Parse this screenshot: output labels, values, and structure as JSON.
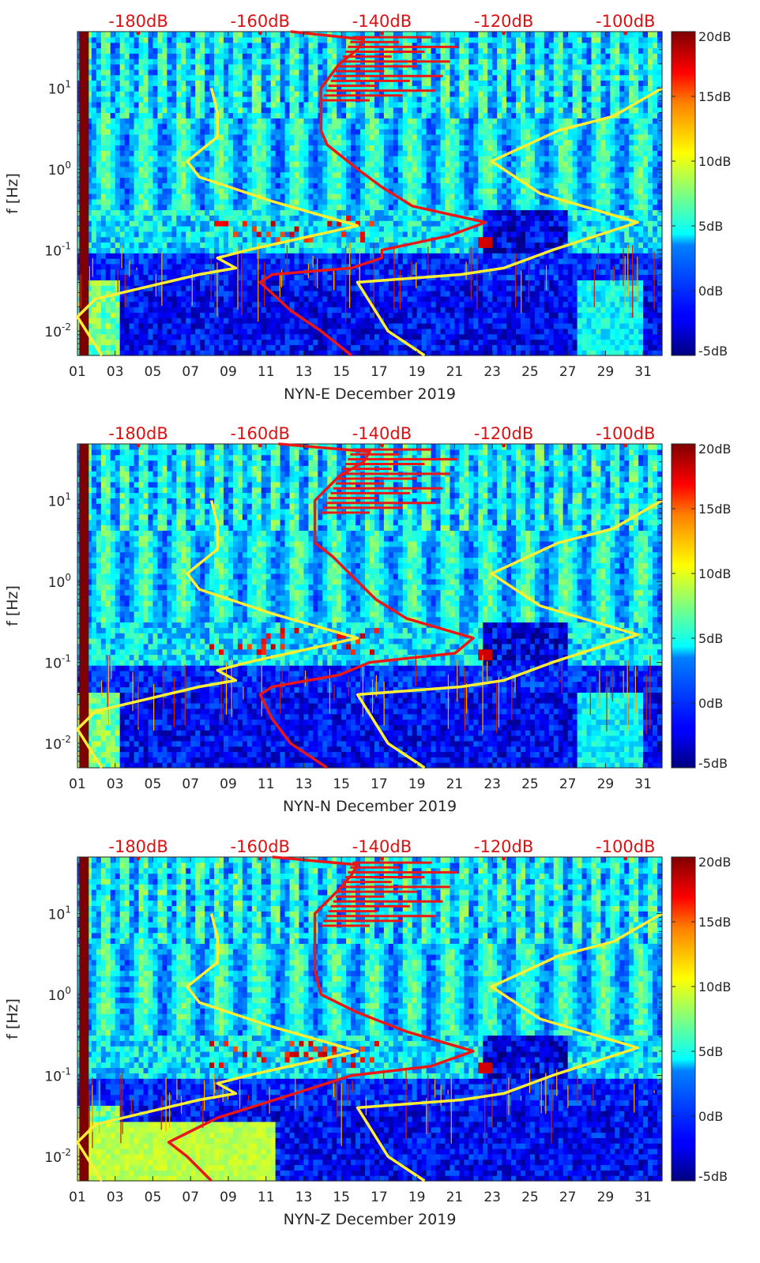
{
  "figure": {
    "colorbar_ticks": [
      "20dB",
      "15dB",
      "10dB",
      "5dB",
      "0dB",
      "-5dB"
    ],
    "top_axis_ticks": [
      "-180dB",
      "-160dB",
      "-140dB",
      "-120dB",
      "-100dB"
    ],
    "colors": {
      "ln_model_curves": "#ffee33",
      "psd_curve": "#e81818",
      "top_axis_text": "#dd1111",
      "colormap": "jet"
    }
  },
  "chart_data": [
    {
      "type": "heatmap",
      "title": "",
      "xlabel": "NYN-E December 2019",
      "ylabel": "f [Hz]",
      "x_ticks": [
        "01",
        "03",
        "05",
        "07",
        "09",
        "11",
        "13",
        "15",
        "17",
        "19",
        "21",
        "23",
        "25",
        "27",
        "29",
        "31"
      ],
      "y_ticks": [
        "10^-2",
        "10^-1",
        "10^0",
        "10^1"
      ],
      "xlim_days": [
        1,
        32
      ],
      "ylim_hz": [
        0.005,
        50
      ],
      "y_scale": "log",
      "colorbar": {
        "label_ticks": [
          "20dB",
          "15dB",
          "10dB",
          "5dB",
          "0dB",
          "-5dB"
        ],
        "range_db": [
          -5,
          20
        ],
        "colormap": "jet"
      },
      "top_axis": {
        "label_ticks": [
          "-180dB",
          "-160dB",
          "-140dB",
          "-120dB",
          "-100dB"
        ],
        "range_db": [
          -190,
          -94
        ]
      },
      "series": [
        {
          "type": "line",
          "color": "#ffee33",
          "points_db_hz": [
            [
              -186,
              0.005
            ],
            [
              -190,
              0.015
            ],
            [
              -187,
              0.025
            ],
            [
              -170,
              0.05
            ],
            [
              -164,
              0.06
            ],
            [
              -167,
              0.08
            ],
            [
              -162,
              0.1
            ],
            [
              -144,
              0.2
            ],
            [
              -158,
              0.4
            ],
            [
              -170,
              0.8
            ],
            [
              -172,
              1.25
            ],
            [
              -167,
              2.5
            ],
            [
              -167,
              5
            ],
            [
              -168,
              10
            ]
          ]
        },
        {
          "type": "line",
          "color": "#ffee33",
          "points_db_hz": [
            [
              -133,
              0.005
            ],
            [
              -139,
              0.01
            ],
            [
              -144,
              0.04
            ],
            [
              -127,
              0.05
            ],
            [
              -120,
              0.06
            ],
            [
              -112,
              0.1
            ],
            [
              -98,
              0.22
            ],
            [
              -114,
              0.5
            ],
            [
              -122,
              1.25
            ],
            [
              -111,
              3
            ],
            [
              -102,
              4.5
            ],
            [
              -94,
              10
            ]
          ]
        },
        {
          "type": "line",
          "color": "#e81818",
          "points_db_hz": [
            [
              -145,
              0.005
            ],
            [
              -150,
              0.01
            ],
            [
              -155,
              0.018
            ],
            [
              -160,
              0.04
            ],
            [
              -158,
              0.05
            ],
            [
              -145,
              0.06
            ],
            [
              -140,
              0.08
            ],
            [
              -140,
              0.1
            ],
            [
              -129,
              0.15
            ],
            [
              -123,
              0.22
            ],
            [
              -135,
              0.35
            ],
            [
              -140,
              0.6
            ],
            [
              -144,
              1
            ],
            [
              -149,
              2
            ],
            [
              -150,
              3
            ],
            [
              -150,
              5
            ],
            [
              -150,
              10
            ],
            [
              -147,
              20
            ],
            [
              -144,
              30
            ],
            [
              -143,
              40
            ],
            [
              -155,
              50
            ]
          ]
        }
      ]
    },
    {
      "type": "heatmap",
      "title": "",
      "xlabel": "NYN-N December 2019",
      "ylabel": "f [Hz]",
      "x_ticks": [
        "01",
        "03",
        "05",
        "07",
        "09",
        "11",
        "13",
        "15",
        "17",
        "19",
        "21",
        "23",
        "25",
        "27",
        "29",
        "31"
      ],
      "y_ticks": [
        "10^-2",
        "10^-1",
        "10^0",
        "10^1"
      ],
      "xlim_days": [
        1,
        32
      ],
      "ylim_hz": [
        0.005,
        50
      ],
      "y_scale": "log",
      "colorbar": {
        "label_ticks": [
          "20dB",
          "15dB",
          "10dB",
          "5dB",
          "0dB",
          "-5dB"
        ],
        "range_db": [
          -5,
          20
        ],
        "colormap": "jet"
      },
      "top_axis": {
        "label_ticks": [
          "-180dB",
          "-160dB",
          "-140dB",
          "-120dB",
          "-100dB"
        ],
        "range_db": [
          -190,
          -94
        ]
      },
      "series": [
        {
          "type": "line",
          "color": "#ffee33",
          "points_db_hz": [
            [
              -186,
              0.005
            ],
            [
              -190,
              0.015
            ],
            [
              -187,
              0.025
            ],
            [
              -170,
              0.05
            ],
            [
              -164,
              0.06
            ],
            [
              -167,
              0.08
            ],
            [
              -162,
              0.1
            ],
            [
              -144,
              0.2
            ],
            [
              -158,
              0.4
            ],
            [
              -170,
              0.8
            ],
            [
              -172,
              1.25
            ],
            [
              -167,
              2.5
            ],
            [
              -167,
              5
            ],
            [
              -168,
              10
            ]
          ]
        },
        {
          "type": "line",
          "color": "#ffee33",
          "points_db_hz": [
            [
              -133,
              0.005
            ],
            [
              -139,
              0.01
            ],
            [
              -144,
              0.04
            ],
            [
              -127,
              0.05
            ],
            [
              -120,
              0.06
            ],
            [
              -112,
              0.1
            ],
            [
              -98,
              0.22
            ],
            [
              -114,
              0.5
            ],
            [
              -122,
              1.25
            ],
            [
              -111,
              3
            ],
            [
              -102,
              4.5
            ],
            [
              -94,
              10
            ]
          ]
        },
        {
          "type": "line",
          "color": "#e81818",
          "points_db_hz": [
            [
              -149,
              0.005
            ],
            [
              -155,
              0.01
            ],
            [
              -158,
              0.02
            ],
            [
              -160,
              0.04
            ],
            [
              -158,
              0.05
            ],
            [
              -147,
              0.07
            ],
            [
              -142,
              0.1
            ],
            [
              -128,
              0.13
            ],
            [
              -125,
              0.2
            ],
            [
              -136,
              0.35
            ],
            [
              -141,
              0.6
            ],
            [
              -144,
              1
            ],
            [
              -148,
              2
            ],
            [
              -151,
              3
            ],
            [
              -151,
              5
            ],
            [
              -151,
              10
            ],
            [
              -147,
              20
            ],
            [
              -143,
              30
            ],
            [
              -142,
              40
            ],
            [
              -157,
              50
            ]
          ]
        }
      ]
    },
    {
      "type": "heatmap",
      "title": "",
      "xlabel": "NYN-Z December 2019",
      "ylabel": "f [Hz]",
      "x_ticks": [
        "01",
        "03",
        "05",
        "07",
        "09",
        "11",
        "13",
        "15",
        "17",
        "19",
        "21",
        "23",
        "25",
        "27",
        "29",
        "31"
      ],
      "y_ticks": [
        "10^-2",
        "10^-1",
        "10^0",
        "10^1"
      ],
      "xlim_days": [
        1,
        32
      ],
      "ylim_hz": [
        0.005,
        50
      ],
      "y_scale": "log",
      "colorbar": {
        "label_ticks": [
          "20dB",
          "15dB",
          "10dB",
          "5dB",
          "0dB",
          "-5dB"
        ],
        "range_db": [
          -5,
          20
        ],
        "colormap": "jet"
      },
      "top_axis": {
        "label_ticks": [
          "-180dB",
          "-160dB",
          "-140dB",
          "-120dB",
          "-100dB"
        ],
        "range_db": [
          -190,
          -94
        ]
      },
      "series": [
        {
          "type": "line",
          "color": "#ffee33",
          "points_db_hz": [
            [
              -186,
              0.005
            ],
            [
              -190,
              0.015
            ],
            [
              -187,
              0.025
            ],
            [
              -170,
              0.05
            ],
            [
              -164,
              0.06
            ],
            [
              -167,
              0.08
            ],
            [
              -162,
              0.1
            ],
            [
              -144,
              0.2
            ],
            [
              -158,
              0.4
            ],
            [
              -170,
              0.8
            ],
            [
              -172,
              1.25
            ],
            [
              -167,
              2.5
            ],
            [
              -167,
              5
            ],
            [
              -168,
              10
            ]
          ]
        },
        {
          "type": "line",
          "color": "#ffee33",
          "points_db_hz": [
            [
              -133,
              0.005
            ],
            [
              -139,
              0.01
            ],
            [
              -144,
              0.04
            ],
            [
              -127,
              0.05
            ],
            [
              -120,
              0.06
            ],
            [
              -112,
              0.1
            ],
            [
              -98,
              0.22
            ],
            [
              -114,
              0.5
            ],
            [
              -122,
              1.25
            ],
            [
              -111,
              3
            ],
            [
              -102,
              4.5
            ],
            [
              -94,
              10
            ]
          ]
        },
        {
          "type": "line",
          "color": "#e81818",
          "points_db_hz": [
            [
              -168,
              0.005
            ],
            [
              -172,
              0.01
            ],
            [
              -175,
              0.015
            ],
            [
              -167,
              0.03
            ],
            [
              -149,
              0.08
            ],
            [
              -145,
              0.1
            ],
            [
              -132,
              0.13
            ],
            [
              -125,
              0.2
            ],
            [
              -136,
              0.35
            ],
            [
              -144,
              0.6
            ],
            [
              -150,
              1
            ],
            [
              -151,
              2
            ],
            [
              -151,
              3
            ],
            [
              -151,
              5
            ],
            [
              -151,
              10
            ],
            [
              -147,
              20
            ],
            [
              -145,
              30
            ],
            [
              -144,
              40
            ],
            [
              -158,
              50
            ]
          ]
        }
      ]
    }
  ]
}
